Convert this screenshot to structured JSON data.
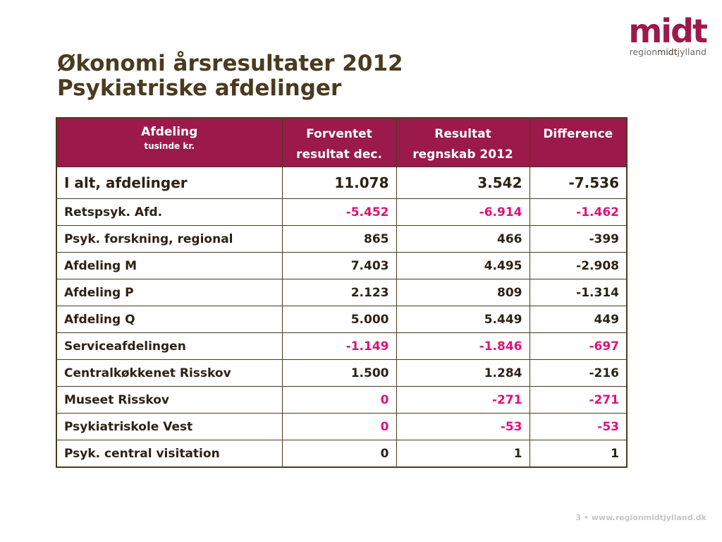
{
  "title": {
    "line1": "Økonomi årsresultater 2012",
    "line2": "Psykiatriske afdelinger"
  },
  "logo": {
    "word": "midt",
    "tag_pre": "region",
    "tag_mid": "midt",
    "tag_post": "jylland"
  },
  "table": {
    "headers": {
      "afdeling": "Afdeling",
      "afdeling_unit": "tusinde kr.",
      "forventet_1": "Forventet",
      "forventet_2": "resultat dec.",
      "resultat_1": "Resultat",
      "resultat_2": "regnskab 2012",
      "difference": "Difference"
    },
    "total": {
      "name": "I alt, afdelinger",
      "forventet": "11.078",
      "resultat": "3.542",
      "difference": "-7.536"
    },
    "rows": [
      {
        "name": "Retspsyk. Afd.",
        "forventet": "-5.452",
        "resultat": "-6.914",
        "difference": "-1.462"
      },
      {
        "name": "Psyk. forskning, regional",
        "forventet": "865",
        "resultat": "466",
        "difference": "-399"
      },
      {
        "name": "Afdeling M",
        "forventet": "7.403",
        "resultat": "4.495",
        "difference": "-2.908"
      },
      {
        "name": "Afdeling P",
        "forventet": "2.123",
        "resultat": "809",
        "difference": "-1.314"
      },
      {
        "name": "Afdeling Q",
        "forventet": "5.000",
        "resultat": "5.449",
        "difference": "449"
      },
      {
        "name": "Serviceafdelingen",
        "forventet": "-1.149",
        "resultat": "-1.846",
        "difference": "-697"
      },
      {
        "name": "Centralkøkkenet Risskov",
        "forventet": "1.500",
        "resultat": "1.284",
        "difference": "-216"
      },
      {
        "name": "Museet Risskov",
        "forventet": "0",
        "resultat": "-271",
        "difference": "-271"
      },
      {
        "name": "Psykiatriskole Vest",
        "forventet": "0",
        "resultat": "-53",
        "difference": "-53"
      },
      {
        "name": "Psyk. central visitation",
        "forventet": "0",
        "resultat": "1",
        "difference": "1"
      }
    ]
  },
  "footer": {
    "page_number": "3",
    "separator": "•",
    "url": "www.regionmidtjylland.dk"
  },
  "colors": {
    "header_background": "#9b1a4b",
    "title_text": "#4a3a1f",
    "highlight_value": "#e0107a"
  }
}
